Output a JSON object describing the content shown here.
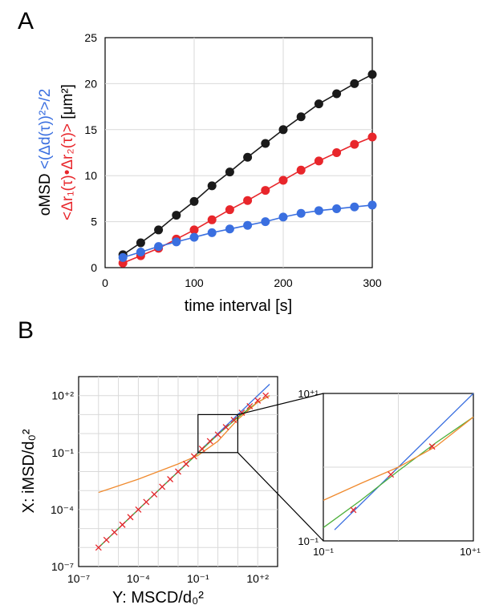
{
  "panels": {
    "a": "A",
    "b": "B"
  },
  "colors": {
    "black": "#1a1a1a",
    "red": "#e8262b",
    "blue": "#3a6fe0",
    "orange": "#f08a2e",
    "green": "#4caf3a",
    "cross": "#e8262b",
    "grid": "#d9d9d9"
  },
  "chart_data": [
    {
      "id": "A",
      "type": "line",
      "title": "",
      "xlabel": "time interval [s]",
      "ylabel_parts": {
        "omsd": "oMSD",
        "blue": "<(Δd(τ))²>/2",
        "red": "<Δr₁(τ)•Δr₂(τ)>",
        "unit": "[μm²]"
      },
      "xlim": [
        0,
        300
      ],
      "ylim": [
        0,
        25
      ],
      "xticks": [
        0,
        100,
        200,
        300
      ],
      "yticks": [
        0,
        5,
        10,
        15,
        20,
        25
      ],
      "x": [
        20,
        40,
        60,
        80,
        100,
        120,
        140,
        160,
        180,
        200,
        220,
        240,
        260,
        280,
        300
      ],
      "series": [
        {
          "name": "black",
          "color": "#1a1a1a",
          "values": [
            1.4,
            2.7,
            4.1,
            5.7,
            7.2,
            8.9,
            10.4,
            12.0,
            13.5,
            15.0,
            16.4,
            17.8,
            18.9,
            20.0,
            21.0
          ]
        },
        {
          "name": "red",
          "color": "#e8262b",
          "values": [
            0.5,
            1.3,
            2.1,
            3.1,
            4.1,
            5.2,
            6.3,
            7.3,
            8.4,
            9.5,
            10.6,
            11.6,
            12.5,
            13.4,
            14.2
          ]
        },
        {
          "name": "blue",
          "color": "#3a6fe0",
          "values": [
            1.1,
            1.7,
            2.3,
            2.8,
            3.3,
            3.8,
            4.2,
            4.6,
            5.0,
            5.5,
            5.9,
            6.2,
            6.4,
            6.6,
            6.8
          ]
        }
      ]
    },
    {
      "id": "B-main",
      "type": "line",
      "scale": "log-log",
      "xlabel": "Y: MSCD/d₀²",
      "ylabel": "X: iMSD/d₀²",
      "xlim_exp": [
        -7,
        3
      ],
      "ylim_exp": [
        -7,
        3
      ],
      "xtick_labels": [
        "10⁻⁷",
        "10⁻⁴",
        "10⁻¹",
        "10⁺²"
      ],
      "ytick_labels": [
        "10⁻⁷",
        "10⁻⁴",
        "10⁻¹",
        "10⁺²"
      ],
      "tick_exps": [
        -7,
        -4,
        -1,
        2
      ],
      "lines": [
        {
          "name": "blue",
          "color": "#3a6fe0",
          "x_exp": [
            -6.0,
            2.6
          ],
          "y_exp": [
            -6.0,
            2.6
          ]
        },
        {
          "name": "green",
          "color": "#4caf3a",
          "x_exp": [
            -6.0,
            -3,
            0,
            1.0,
            1.6,
            2.0,
            2.6
          ],
          "y_exp": [
            -6.0,
            -3,
            -0.05,
            0.85,
            1.35,
            1.65,
            2.0
          ]
        },
        {
          "name": "orange",
          "color": "#f08a2e",
          "x_exp": [
            -6.0,
            -4,
            -2,
            -1,
            0,
            1.0,
            2.0,
            2.6
          ],
          "y_exp": [
            -3.1,
            -2.4,
            -1.6,
            -1.15,
            -0.4,
            0.75,
            1.65,
            2.0
          ]
        }
      ],
      "markers": {
        "name": "crosses",
        "color": "#e8262b",
        "x_exp": [
          -6.0,
          -5.6,
          -5.2,
          -4.8,
          -4.4,
          -4.0,
          -3.6,
          -3.2,
          -2.8,
          -2.4,
          -2.0,
          -1.6,
          -1.2,
          -0.8,
          -0.4,
          0.0,
          0.4,
          0.8,
          1.2,
          1.6,
          2.0,
          2.4
        ],
        "y_exp": [
          -6.0,
          -5.6,
          -5.2,
          -4.8,
          -4.4,
          -4.0,
          -3.6,
          -3.2,
          -2.8,
          -2.4,
          -2.0,
          -1.6,
          -1.2,
          -0.8,
          -0.4,
          -0.05,
          0.34,
          0.72,
          1.1,
          1.44,
          1.74,
          2.0
        ]
      },
      "zoom_box": {
        "x_exp": [
          -1,
          1
        ],
        "y_exp": [
          -1,
          1
        ]
      }
    },
    {
      "id": "B-inset",
      "type": "line",
      "scale": "log-log",
      "xlim_exp": [
        -1,
        1
      ],
      "ylim_exp": [
        -1,
        1
      ],
      "xtick_labels": [
        "10⁻¹",
        "10⁺¹"
      ],
      "ytick_labels": [
        "10⁻¹",
        "10⁺¹"
      ],
      "lines": [
        {
          "name": "blue",
          "color": "#3a6fe0",
          "x_exp": [
            -0.85,
            1.0
          ],
          "y_exp": [
            -0.85,
            1.0
          ]
        },
        {
          "name": "green",
          "color": "#4caf3a",
          "x_exp": [
            -1.0,
            -0.5,
            0.0,
            0.5,
            1.0
          ],
          "y_exp": [
            -0.82,
            -0.45,
            -0.05,
            0.33,
            0.68
          ]
        },
        {
          "name": "orange",
          "color": "#f08a2e",
          "x_exp": [
            -1.0,
            -0.5,
            0.0,
            0.5,
            1.0
          ],
          "y_exp": [
            -0.45,
            -0.22,
            0.0,
            0.28,
            0.68
          ]
        }
      ],
      "markers": {
        "name": "crosses",
        "color": "#e8262b",
        "x_exp": [
          -0.6,
          -0.1,
          0.45
        ],
        "y_exp": [
          -0.58,
          -0.1,
          0.28
        ]
      }
    }
  ]
}
